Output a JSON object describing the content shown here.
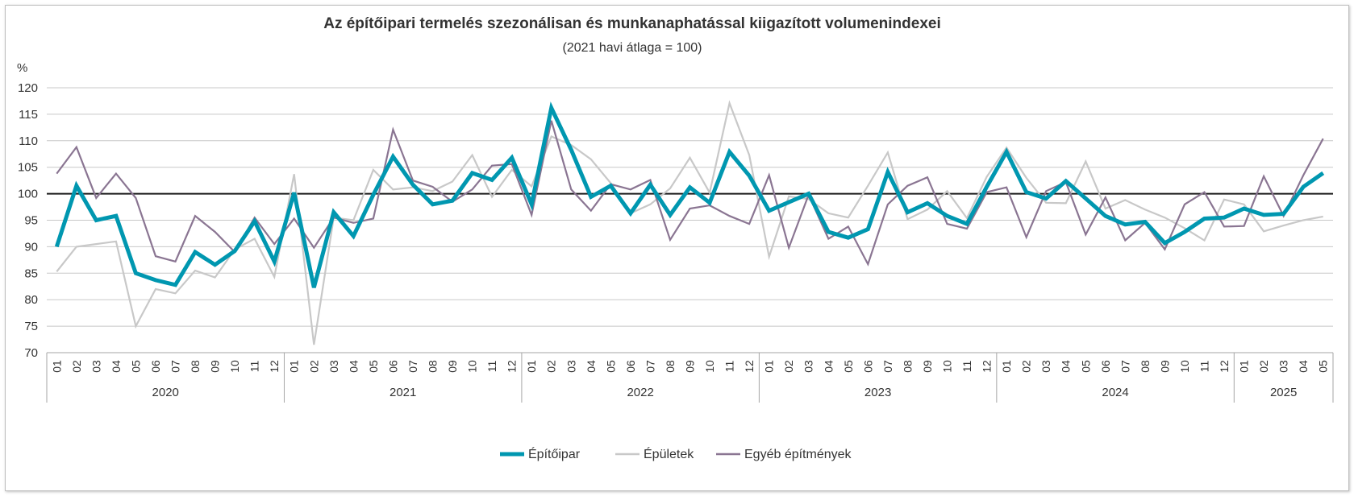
{
  "chart_data": {
    "type": "line",
    "title": "Az építőipari termelés szezonálisan és munkanaphatással kiigazított volumenindexei",
    "subtitle": "(2021 havi átlaga = 100)",
    "ylabel": "%",
    "ylim": [
      70,
      120
    ],
    "yticks": [
      70,
      75,
      80,
      85,
      90,
      95,
      100,
      105,
      110,
      115,
      120
    ],
    "reference_line": 100,
    "years": [
      {
        "label": "2020",
        "months": 12
      },
      {
        "label": "2021",
        "months": 12
      },
      {
        "label": "2022",
        "months": 12
      },
      {
        "label": "2023",
        "months": 12
      },
      {
        "label": "2024",
        "months": 12
      },
      {
        "label": "2025",
        "months": 5
      }
    ],
    "categories": [
      "01",
      "02",
      "03",
      "04",
      "05",
      "06",
      "07",
      "08",
      "09",
      "10",
      "11",
      "12",
      "01",
      "02",
      "03",
      "04",
      "05",
      "06",
      "07",
      "08",
      "09",
      "10",
      "11",
      "12",
      "01",
      "02",
      "03",
      "04",
      "05",
      "06",
      "07",
      "08",
      "09",
      "10",
      "11",
      "12",
      "01",
      "02",
      "03",
      "04",
      "05",
      "06",
      "07",
      "08",
      "09",
      "10",
      "11",
      "12",
      "01",
      "02",
      "03",
      "04",
      "05",
      "06",
      "07",
      "08",
      "09",
      "10",
      "11",
      "12",
      "01",
      "02",
      "03",
      "04",
      "05"
    ],
    "series": [
      {
        "name": "Épületek",
        "color": "#c8c8c8",
        "values": [
          85.3,
          90.0,
          90.5,
          91.0,
          75.0,
          82.0,
          81.2,
          85.5,
          84.2,
          89.5,
          91.5,
          84.3,
          103.7,
          71.5,
          95.5,
          95.0,
          104.5,
          100.8,
          101.2,
          100.5,
          102.3,
          107.3,
          99.4,
          104.5,
          101.4,
          110.8,
          109.2,
          106.5,
          102.0,
          96.3,
          98.0,
          101.0,
          106.8,
          100.2,
          117.1,
          107.3,
          88.1,
          99.5,
          99.0,
          96.3,
          95.5,
          101.5,
          107.8,
          95.2,
          97.0,
          100.5,
          95.4,
          103.2,
          108.7,
          103.0,
          98.3,
          98.2,
          106.1,
          97.2,
          98.8,
          97.0,
          95.5,
          93.5,
          91.2,
          98.9,
          98.0,
          92.9,
          94.0,
          95.0,
          95.7
        ]
      },
      {
        "name": "Egyéb építmények",
        "color": "#8a7592",
        "values": [
          103.8,
          108.8,
          99.2,
          103.8,
          99.2,
          88.2,
          87.2,
          95.8,
          92.8,
          89.0,
          95.5,
          90.5,
          95.3,
          89.8,
          95.5,
          94.5,
          95.3,
          112.1,
          102.5,
          101.3,
          98.5,
          100.8,
          105.3,
          105.6,
          96.0,
          113.8,
          100.8,
          96.8,
          101.8,
          100.8,
          102.6,
          91.3,
          97.2,
          97.8,
          95.8,
          94.3,
          103.5,
          89.8,
          99.8,
          91.5,
          93.8,
          86.7,
          98.0,
          101.5,
          103.1,
          94.3,
          93.4,
          100.3,
          101.2,
          91.8,
          100.5,
          102.2,
          92.3,
          99.3,
          91.2,
          94.5,
          89.5,
          98.0,
          100.3,
          93.8,
          93.9,
          103.3,
          95.8,
          103.5,
          110.4
        ]
      },
      {
        "name": "Építőipar",
        "color": "#0097b0",
        "values": [
          90.0,
          101.5,
          95.0,
          95.8,
          85.0,
          83.7,
          82.8,
          89.0,
          86.6,
          89.2,
          94.8,
          87.2,
          100.2,
          82.3,
          96.5,
          92.0,
          99.8,
          107.0,
          101.7,
          98.0,
          98.7,
          103.9,
          102.6,
          106.8,
          98.0,
          116.2,
          108.3,
          99.4,
          101.5,
          96.3,
          101.7,
          96.0,
          101.2,
          98.3,
          107.9,
          103.4,
          96.8,
          98.4,
          100.0,
          92.8,
          91.7,
          93.3,
          104.1,
          96.5,
          98.2,
          95.8,
          94.3,
          101.3,
          107.9,
          100.3,
          99.1,
          102.4,
          99.1,
          95.8,
          94.2,
          94.7,
          90.7,
          92.8,
          95.3,
          95.5,
          97.2,
          96.0,
          96.2,
          101.3,
          103.9
        ]
      }
    ],
    "legend": {
      "placement": "bottom-center",
      "items": [
        "Építőipar",
        "Épületek",
        "Egyéb építmények"
      ]
    },
    "grid": true
  },
  "colors": {
    "reference_line": "#1a1a1a",
    "grid": "#c8c8c8",
    "axis": "#a6a6a6"
  }
}
